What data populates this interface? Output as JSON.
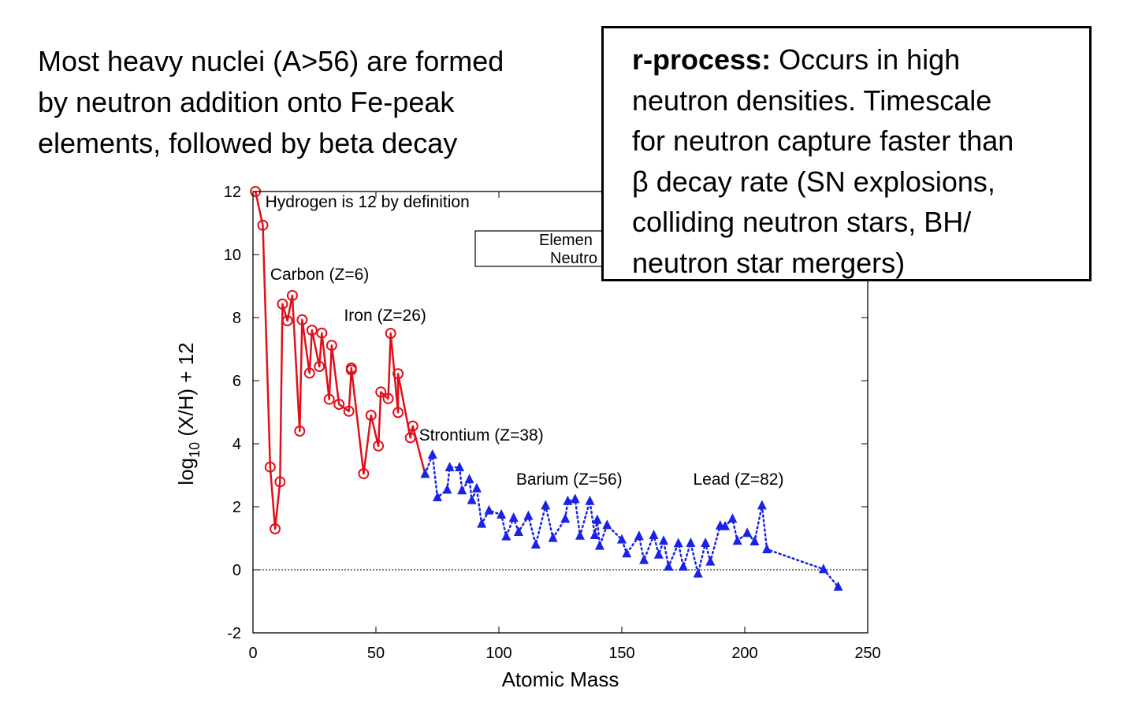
{
  "intro": {
    "lines": [
      "Most heavy nuclei (A>56) are formed",
      "by neutron addition onto Fe-peak",
      "elements, followed by beta decay"
    ]
  },
  "callout": {
    "heading": "r-process:",
    "first_line_rest": " Occurs in high",
    "lines": [
      "neutron densities. Timescale",
      "for neutron capture faster than",
      "β decay rate (SN explosions,",
      "colliding neutron stars, BH/",
      "neutron star mergers)"
    ]
  },
  "colors": {
    "red_series": "#e0101a",
    "blue_series": "#1a22e6"
  },
  "chart_data": {
    "type": "scatter",
    "xlabel": "Atomic Mass",
    "ylabel_base": "log",
    "ylabel_sub": "10",
    "ylabel_rest": " (X/H) + 12",
    "xlim": [
      0,
      250
    ],
    "ylim": [
      -2,
      12
    ],
    "xticks": [
      0,
      50,
      100,
      150,
      200,
      250
    ],
    "yticks": [
      -2,
      0,
      2,
      4,
      6,
      8,
      10,
      12
    ],
    "zero_line": true,
    "legend_partial": [
      "Elemen",
      "Neutro"
    ],
    "annotations": [
      {
        "text": "Hydrogen is 12 by definition",
        "x": 5,
        "y": 11.5
      },
      {
        "text": "Carbon (Z=6)",
        "x": 7,
        "y": 9.2
      },
      {
        "text": "Iron (Z=26)",
        "x": 37,
        "y": 7.9
      },
      {
        "text": "Strontium (Z=38)",
        "x": 67.5,
        "y": 4.1
      },
      {
        "text": "Barium (Z=56)",
        "x": 107,
        "y": 2.7
      },
      {
        "text": "Lead (Z=82)",
        "x": 179,
        "y": 2.7
      }
    ],
    "series": [
      {
        "marker": "circle",
        "line": "solid",
        "points": [
          [
            1,
            12.0
          ],
          [
            4,
            10.93
          ],
          [
            7,
            3.26
          ],
          [
            9,
            1.3
          ],
          [
            11,
            2.79
          ],
          [
            12,
            8.43
          ],
          [
            14,
            7.9
          ],
          [
            16,
            8.7
          ],
          [
            19,
            4.4
          ],
          [
            20,
            7.93
          ],
          [
            23,
            6.24
          ],
          [
            24,
            7.6
          ],
          [
            27,
            6.45
          ],
          [
            28,
            7.51
          ],
          [
            31,
            5.41
          ],
          [
            32,
            7.12
          ],
          [
            35,
            5.25
          ],
          [
            39,
            5.03
          ],
          [
            40,
            6.34
          ],
          [
            40,
            6.4
          ],
          [
            45,
            3.05
          ],
          [
            48,
            4.9
          ],
          [
            51,
            3.93
          ],
          [
            52,
            5.64
          ],
          [
            55,
            5.43
          ],
          [
            56,
            7.5
          ],
          [
            59,
            4.99
          ],
          [
            59,
            6.22
          ],
          [
            64,
            4.19
          ],
          [
            65,
            4.56
          ]
        ]
      },
      {
        "marker": "triangle",
        "line": "dotted",
        "points": [
          [
            70,
            3.04
          ],
          [
            73,
            3.65
          ],
          [
            75,
            2.3
          ],
          [
            79,
            2.54
          ],
          [
            80,
            3.25
          ],
          [
            84,
            3.25
          ],
          [
            85,
            2.52
          ],
          [
            88,
            2.87
          ],
          [
            89,
            2.21
          ],
          [
            91,
            2.58
          ],
          [
            93,
            1.46
          ],
          [
            96,
            1.88
          ],
          [
            101,
            1.75
          ],
          [
            103,
            1.06
          ],
          [
            106,
            1.65
          ],
          [
            108,
            1.2
          ],
          [
            112,
            1.71
          ],
          [
            115,
            0.8
          ],
          [
            119,
            2.04
          ],
          [
            122,
            1.01
          ],
          [
            127,
            1.62
          ],
          [
            128,
            2.18
          ],
          [
            131,
            2.24
          ],
          [
            133,
            1.08
          ],
          [
            137,
            2.18
          ],
          [
            139,
            1.1
          ],
          [
            140,
            1.58
          ],
          [
            141,
            0.76
          ],
          [
            144,
            1.42
          ],
          [
            150,
            0.96
          ],
          [
            152,
            0.52
          ],
          [
            157,
            1.07
          ],
          [
            159,
            0.31
          ],
          [
            163,
            1.1
          ],
          [
            165,
            0.48
          ],
          [
            167,
            0.92
          ],
          [
            169,
            0.1
          ],
          [
            173,
            0.84
          ],
          [
            175,
            0.1
          ],
          [
            178,
            0.85
          ],
          [
            181,
            -0.12
          ],
          [
            184,
            0.85
          ],
          [
            186,
            0.26
          ],
          [
            190,
            1.4
          ],
          [
            192,
            1.38
          ],
          [
            195,
            1.62
          ],
          [
            197,
            0.92
          ],
          [
            201,
            1.17
          ],
          [
            204,
            0.9
          ],
          [
            207,
            2.04
          ],
          [
            209,
            0.65
          ],
          [
            232,
            0.02
          ],
          [
            238,
            -0.54
          ]
        ]
      }
    ]
  }
}
